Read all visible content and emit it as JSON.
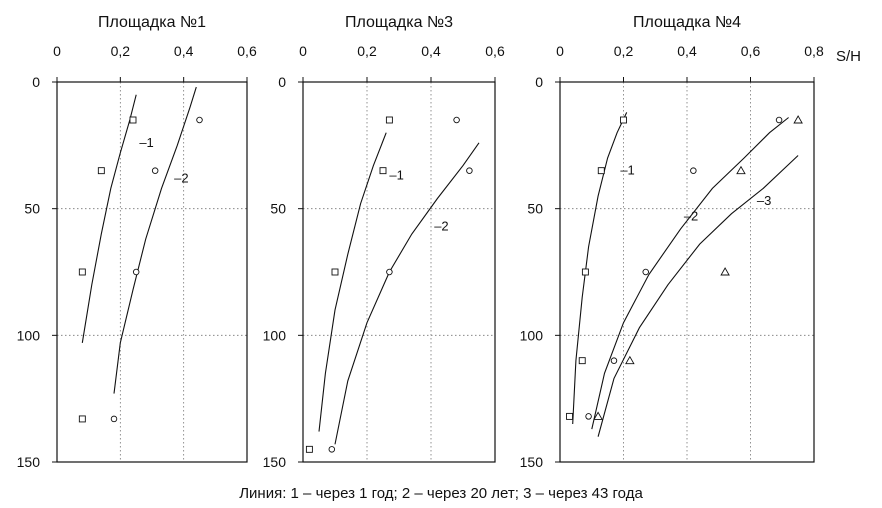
{
  "units_label": "S/H",
  "caption": "Линия: 1 – через 1 год; 2 – через 20 лет; 3 – через 43 года",
  "chart_data": [
    {
      "type": "scatter",
      "title": "Площадка №1",
      "x_ticks": [
        "0",
        "0,2",
        "0,4",
        "0,6"
      ],
      "y_ticks": [
        "0",
        "50",
        "100",
        "150"
      ],
      "xlim": [
        0,
        0.6
      ],
      "ylim": [
        0,
        150
      ],
      "grid": true,
      "series": [
        {
          "name": "1",
          "marker": "square",
          "points": [
            [
              0.24,
              15
            ],
            [
              0.14,
              35
            ],
            [
              0.08,
              75
            ],
            [
              0.08,
              133
            ]
          ],
          "curve": [
            [
              0.08,
              103
            ],
            [
              0.11,
              80
            ],
            [
              0.14,
              60
            ],
            [
              0.17,
              42
            ],
            [
              0.2,
              28
            ],
            [
              0.23,
              15
            ],
            [
              0.25,
              5
            ]
          ]
        },
        {
          "name": "2",
          "marker": "circle",
          "points": [
            [
              0.45,
              15
            ],
            [
              0.31,
              35
            ],
            [
              0.25,
              75
            ],
            [
              0.18,
              133
            ]
          ],
          "curve": [
            [
              0.18,
              123
            ],
            [
              0.2,
              103
            ],
            [
              0.24,
              82
            ],
            [
              0.28,
              62
            ],
            [
              0.33,
              42
            ],
            [
              0.38,
              25
            ],
            [
              0.42,
              10
            ],
            [
              0.44,
              2
            ]
          ]
        }
      ]
    },
    {
      "type": "scatter",
      "title": "Площадка №3",
      "x_ticks": [
        "0",
        "0,2",
        "0,4",
        "0,6"
      ],
      "y_ticks": [
        "0",
        "50",
        "100",
        "150"
      ],
      "xlim": [
        0,
        0.6
      ],
      "ylim": [
        0,
        150
      ],
      "grid": true,
      "series": [
        {
          "name": "1",
          "marker": "square",
          "points": [
            [
              0.27,
              15
            ],
            [
              0.25,
              35
            ],
            [
              0.1,
              75
            ],
            [
              0.02,
              145
            ]
          ],
          "curve": [
            [
              0.05,
              138
            ],
            [
              0.07,
              115
            ],
            [
              0.1,
              90
            ],
            [
              0.14,
              68
            ],
            [
              0.18,
              48
            ],
            [
              0.22,
              33
            ],
            [
              0.26,
              20
            ]
          ]
        },
        {
          "name": "2",
          "marker": "circle",
          "points": [
            [
              0.48,
              15
            ],
            [
              0.52,
              35
            ],
            [
              0.27,
              75
            ],
            [
              0.09,
              145
            ]
          ],
          "curve": [
            [
              0.1,
              143
            ],
            [
              0.14,
              118
            ],
            [
              0.2,
              95
            ],
            [
              0.27,
              75
            ],
            [
              0.34,
              60
            ],
            [
              0.42,
              46
            ],
            [
              0.5,
              33
            ],
            [
              0.55,
              24
            ]
          ]
        }
      ]
    },
    {
      "type": "scatter",
      "title": "Площадка №4",
      "x_ticks": [
        "0",
        "0,2",
        "0,4",
        "0,6",
        "0,8"
      ],
      "y_ticks": [
        "0",
        "50",
        "100",
        "150"
      ],
      "xlim": [
        0,
        0.8
      ],
      "ylim": [
        0,
        150
      ],
      "grid": true,
      "series": [
        {
          "name": "1",
          "marker": "square",
          "points": [
            [
              0.2,
              15
            ],
            [
              0.13,
              35
            ],
            [
              0.08,
              75
            ],
            [
              0.07,
              110
            ],
            [
              0.03,
              132
            ]
          ],
          "curve": [
            [
              0.04,
              135
            ],
            [
              0.05,
              110
            ],
            [
              0.07,
              85
            ],
            [
              0.09,
              65
            ],
            [
              0.12,
              45
            ],
            [
              0.15,
              30
            ],
            [
              0.18,
              20
            ],
            [
              0.21,
              12
            ]
          ]
        },
        {
          "name": "2",
          "marker": "circle",
          "points": [
            [
              0.69,
              15
            ],
            [
              0.42,
              35
            ],
            [
              0.27,
              75
            ],
            [
              0.17,
              110
            ],
            [
              0.09,
              132
            ]
          ],
          "curve": [
            [
              0.1,
              137
            ],
            [
              0.14,
              115
            ],
            [
              0.2,
              95
            ],
            [
              0.28,
              76
            ],
            [
              0.38,
              58
            ],
            [
              0.48,
              42
            ],
            [
              0.58,
              30
            ],
            [
              0.66,
              20
            ],
            [
              0.72,
              14
            ]
          ]
        },
        {
          "name": "3",
          "marker": "triangle",
          "points": [
            [
              0.75,
              15
            ],
            [
              0.57,
              35
            ],
            [
              0.52,
              75
            ],
            [
              0.22,
              110
            ],
            [
              0.12,
              132
            ]
          ],
          "curve": [
            [
              0.12,
              140
            ],
            [
              0.17,
              117
            ],
            [
              0.25,
              97
            ],
            [
              0.34,
              80
            ],
            [
              0.44,
              64
            ],
            [
              0.54,
              52
            ],
            [
              0.64,
              42
            ],
            [
              0.75,
              29
            ]
          ]
        }
      ]
    }
  ]
}
